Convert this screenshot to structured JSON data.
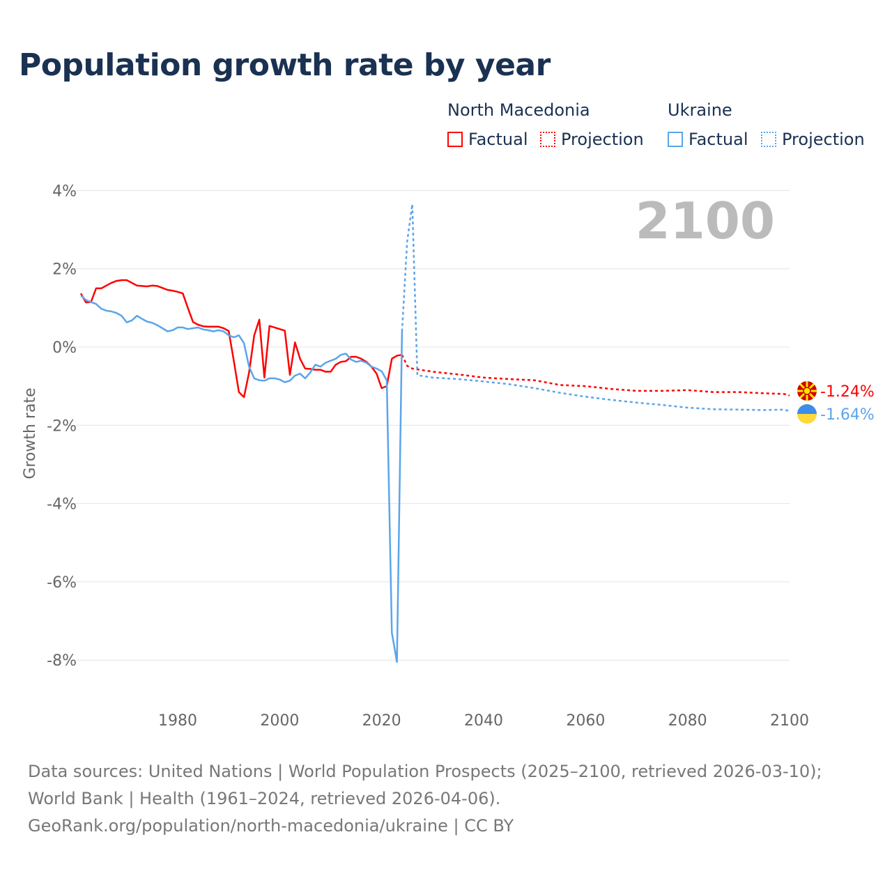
{
  "title": "Population growth rate by year",
  "legend": {
    "groups": [
      {
        "name": "North Macedonia",
        "color": "#ff0000",
        "items": [
          "Factual",
          "Projection"
        ]
      },
      {
        "name": "Ukraine",
        "color": "#5aa5ea",
        "items": [
          "Factual",
          "Projection"
        ]
      }
    ]
  },
  "chart_data": {
    "type": "line",
    "title": "Population growth rate by year",
    "xlabel": "",
    "ylabel": "Growth rate",
    "xlim": [
      1961,
      2100
    ],
    "ylim": [
      -9.1,
      4.4
    ],
    "x_ticks": [
      1980,
      2000,
      2020,
      2040,
      2060,
      2080,
      2100
    ],
    "y_ticks": [
      4,
      2,
      0,
      -2,
      -4,
      -6,
      -8
    ],
    "y_tick_labels": [
      "4%",
      "2%",
      "0%",
      "-2%",
      "-4%",
      "-6%",
      "-8%"
    ],
    "year_watermark": "2100",
    "grid": true,
    "series": [
      {
        "name": "North Macedonia Factual",
        "color": "#ff0000",
        "dashed": false,
        "x_start": 1961,
        "values": [
          1.37,
          1.14,
          1.15,
          1.5,
          1.5,
          1.57,
          1.64,
          1.69,
          1.71,
          1.71,
          1.64,
          1.57,
          1.56,
          1.55,
          1.57,
          1.56,
          1.51,
          1.46,
          1.44,
          1.41,
          1.37,
          1.0,
          0.64,
          0.57,
          0.53,
          0.52,
          0.52,
          0.52,
          0.48,
          0.41,
          -0.35,
          -1.15,
          -1.28,
          -0.65,
          0.3,
          0.7,
          -0.78,
          0.54,
          0.5,
          0.46,
          0.42,
          -0.71,
          0.12,
          -0.3,
          -0.55,
          -0.56,
          -0.58,
          -0.58,
          -0.63,
          -0.63,
          -0.45,
          -0.38,
          -0.36,
          -0.25,
          -0.25,
          -0.3,
          -0.38,
          -0.5,
          -0.68,
          -1.05,
          -1.0,
          -0.3,
          -0.22,
          -0.2
        ]
      },
      {
        "name": "North Macedonia Projection",
        "color": "#ff0000",
        "dashed": true,
        "points": [
          [
            2024,
            -0.2
          ],
          [
            2025,
            -0.48
          ],
          [
            2026,
            -0.55
          ],
          [
            2030,
            -0.63
          ],
          [
            2035,
            -0.7
          ],
          [
            2040,
            -0.78
          ],
          [
            2045,
            -0.82
          ],
          [
            2050,
            -0.85
          ],
          [
            2055,
            -0.97
          ],
          [
            2060,
            -1.0
          ],
          [
            2065,
            -1.07
          ],
          [
            2070,
            -1.12
          ],
          [
            2075,
            -1.12
          ],
          [
            2080,
            -1.1
          ],
          [
            2085,
            -1.15
          ],
          [
            2090,
            -1.15
          ],
          [
            2095,
            -1.18
          ],
          [
            2099,
            -1.2
          ],
          [
            2100,
            -1.24
          ]
        ]
      },
      {
        "name": "Ukraine Factual",
        "color": "#5aa5ea",
        "dashed": false,
        "x_start": 1961,
        "values": [
          1.32,
          1.2,
          1.15,
          1.1,
          0.98,
          0.93,
          0.91,
          0.87,
          0.8,
          0.63,
          0.68,
          0.8,
          0.72,
          0.65,
          0.62,
          0.56,
          0.48,
          0.4,
          0.43,
          0.5,
          0.5,
          0.46,
          0.48,
          0.5,
          0.45,
          0.43,
          0.4,
          0.43,
          0.4,
          0.3,
          0.25,
          0.3,
          0.1,
          -0.5,
          -0.8,
          -0.85,
          -0.86,
          -0.8,
          -0.8,
          -0.83,
          -0.9,
          -0.86,
          -0.73,
          -0.68,
          -0.8,
          -0.65,
          -0.45,
          -0.5,
          -0.4,
          -0.35,
          -0.3,
          -0.2,
          -0.17,
          -0.32,
          -0.38,
          -0.35,
          -0.4,
          -0.5,
          -0.55,
          -0.62,
          -0.85,
          -7.3,
          -8.05,
          0.4
        ]
      },
      {
        "name": "Ukraine Projection",
        "color": "#5aa5ea",
        "dashed": true,
        "points": [
          [
            2024,
            0.4
          ],
          [
            2025,
            2.7
          ],
          [
            2026,
            3.65
          ],
          [
            2027,
            -0.72
          ],
          [
            2030,
            -0.78
          ],
          [
            2035,
            -0.82
          ],
          [
            2040,
            -0.88
          ],
          [
            2045,
            -0.95
          ],
          [
            2050,
            -1.05
          ],
          [
            2055,
            -1.17
          ],
          [
            2060,
            -1.27
          ],
          [
            2065,
            -1.35
          ],
          [
            2070,
            -1.42
          ],
          [
            2075,
            -1.48
          ],
          [
            2080,
            -1.55
          ],
          [
            2085,
            -1.59
          ],
          [
            2090,
            -1.6
          ],
          [
            2095,
            -1.61
          ],
          [
            2099,
            -1.6
          ],
          [
            2100,
            -1.64
          ]
        ]
      }
    ],
    "end_labels": [
      {
        "country": "North Macedonia",
        "value": -1.24,
        "text": "-1.24%",
        "color": "#ff0000"
      },
      {
        "country": "Ukraine",
        "value": -1.64,
        "text": "-1.64%",
        "color": "#5aa5ea"
      }
    ]
  },
  "footer": {
    "sources": "Data sources: United Nations | World Population Prospects (2025–2100, retrieved 2026-03-10); World Bank | Health (1961–2024, retrieved 2026-04-06).",
    "link": "GeoRank.org/population/north-macedonia/ukraine | CC BY"
  }
}
